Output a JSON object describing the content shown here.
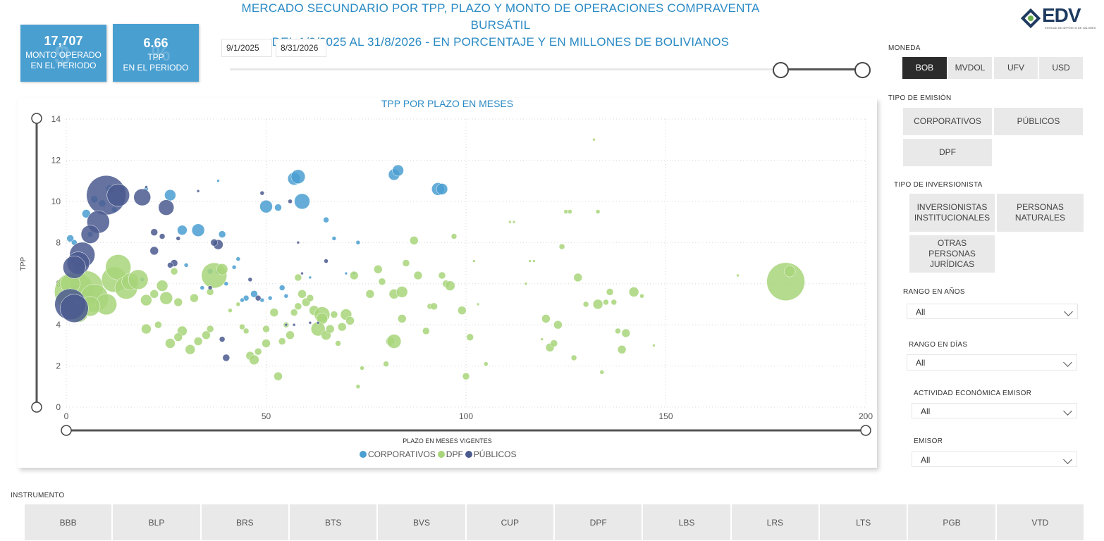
{
  "header": {
    "title_line1": "MERCADO SECUNDARIO POR TPP, PLAZO Y MONTO DE OPERACIONES COMPRAVENTA BURSÁTIL",
    "title_line2": "DEL 1/9/2025 AL 31/8/2026 - EN PORCENTAJE Y EN MILLONES DE BOLIVIANOS",
    "logo_text": "EDV",
    "logo_subtext": "ENTIDAD DE DEPÓSITO DE VALORES"
  },
  "kpis": [
    {
      "value": "17,707",
      "label1": "MONTO OPERADO",
      "label2": "EN EL PERIODO"
    },
    {
      "value": "6.66",
      "label1": "TPP",
      "label2": "EN EL PERIODO"
    }
  ],
  "date_range": {
    "start": "9/1/2025",
    "end": "8/31/2026"
  },
  "moneda": {
    "label": "MONEDA",
    "options": [
      "BOB",
      "MVDOL",
      "UFV",
      "USD"
    ],
    "selected": "BOB"
  },
  "tipo_emision": {
    "label": "TIPO DE EMISIÓN",
    "options": [
      "CORPORATIVOS",
      "PÚBLICOS",
      "DPF"
    ]
  },
  "tipo_inversionista": {
    "label": "TIPO DE INVERSIONISTA",
    "options": [
      [
        "INVERSIONISTAS",
        "INSTITUCIONALES"
      ],
      [
        "PERSONAS",
        "NATURALES"
      ],
      [
        "OTRAS",
        "PERSONAS",
        "JURÍDICAS"
      ]
    ]
  },
  "dropdowns": [
    {
      "label": "RANGO EN AÑOS",
      "value": "All"
    },
    {
      "label": "RANGO EN DÍAS",
      "value": "All"
    },
    {
      "label": "ACTIVIDAD ECONÓMICA EMISOR",
      "value": "All"
    },
    {
      "label": "EMISOR",
      "value": "All"
    }
  ],
  "instrumento": {
    "label": "INSTRUMENTO",
    "options": [
      "BBB",
      "BLP",
      "BRS",
      "BTS",
      "BVS",
      "CUP",
      "DPF",
      "LBS",
      "LRS",
      "LTS",
      "PGB",
      "VTD"
    ]
  },
  "colors": {
    "corporativos": "#4a9fd1",
    "dpf": "#a8d57a",
    "publicos": "#4b5b8f",
    "title_blue": "#2a8ac4"
  },
  "chart_data": {
    "type": "scatter",
    "title": "TPP POR PLAZO EN MESES",
    "xlabel": "PLAZO EN MESES VIGENTES",
    "ylabel": "TPP",
    "xlim": [
      0,
      200
    ],
    "ylim": [
      0,
      14
    ],
    "xticks": [
      0,
      50,
      100,
      150,
      200
    ],
    "yticks": [
      0,
      2,
      4,
      6,
      8,
      10,
      12,
      14
    ],
    "grid": true,
    "legend_position": "bottom",
    "series": [
      {
        "name": "CORPORATIVOS",
        "color": "#4a9fd1",
        "points": [
          [
            57,
            11.1,
            9
          ],
          [
            58,
            11.2,
            10
          ],
          [
            82,
            11.3,
            8
          ],
          [
            83,
            11.5,
            8
          ],
          [
            93,
            10.6,
            9
          ],
          [
            94,
            10.6,
            8
          ],
          [
            50,
            9.75,
            9
          ],
          [
            53,
            9.7,
            5
          ],
          [
            59,
            10.0,
            11
          ],
          [
            26,
            10.3,
            8
          ],
          [
            29,
            8.6,
            7
          ],
          [
            33,
            8.6,
            9
          ],
          [
            39,
            8.4,
            5
          ],
          [
            1,
            8.2,
            5
          ],
          [
            2,
            8.0,
            4
          ],
          [
            6,
            8.4,
            4
          ],
          [
            65,
            9.1,
            4
          ],
          [
            67,
            8.2,
            3
          ],
          [
            73,
            8.0,
            3
          ],
          [
            7,
            10.1,
            5
          ],
          [
            5,
            9.4,
            6
          ],
          [
            11,
            10.6,
            6
          ],
          [
            9,
            9.9,
            5
          ],
          [
            12,
            9.6,
            4
          ],
          [
            14,
            10.6,
            5
          ],
          [
            20,
            10.6,
            3
          ],
          [
            43,
            7.2,
            3
          ],
          [
            42,
            6.8,
            3
          ],
          [
            38,
            6.6,
            4
          ],
          [
            36,
            6.6,
            4
          ],
          [
            30,
            6.9,
            3
          ],
          [
            4,
            7.0,
            5
          ],
          [
            3,
            6.8,
            7
          ],
          [
            19,
            6.2,
            3
          ],
          [
            47,
            5.5,
            5
          ],
          [
            45,
            5.3,
            4
          ],
          [
            51,
            5.3,
            3
          ],
          [
            55,
            5.4,
            3
          ],
          [
            54,
            5.8,
            4
          ],
          [
            49,
            5.2,
            3
          ],
          [
            34,
            5.8,
            3
          ],
          [
            40,
            6.0,
            3
          ],
          [
            61,
            6.3,
            2
          ],
          [
            70,
            6.5,
            2
          ],
          [
            72,
            6.5,
            2
          ],
          [
            38,
            11.0,
            2
          ],
          [
            2,
            5.4,
            4
          ],
          [
            44,
            5.2,
            3
          ]
        ]
      },
      {
        "name": "DPF",
        "color": "#a8d57a",
        "points": [
          [
            180,
            6.1,
            27
          ],
          [
            181,
            6.6,
            8
          ],
          [
            2,
            5.6,
            28
          ],
          [
            5,
            5.8,
            24
          ],
          [
            7,
            5.3,
            20
          ],
          [
            10,
            5.0,
            15
          ],
          [
            12,
            6.2,
            18
          ],
          [
            13,
            6.8,
            18
          ],
          [
            15,
            5.8,
            16
          ],
          [
            16,
            6.1,
            12
          ],
          [
            18,
            6.2,
            14
          ],
          [
            3,
            4.6,
            14
          ],
          [
            6,
            4.9,
            14
          ],
          [
            1,
            6.0,
            14
          ],
          [
            37,
            6.4,
            18
          ],
          [
            39,
            6.7,
            8
          ],
          [
            20,
            5.2,
            8
          ],
          [
            22,
            5.5,
            6
          ],
          [
            24,
            5.9,
            8
          ],
          [
            25,
            5.3,
            9
          ],
          [
            28,
            5.1,
            6
          ],
          [
            32,
            5.3,
            6
          ],
          [
            36,
            5.6,
            5
          ],
          [
            27,
            6.6,
            5
          ],
          [
            29,
            3.7,
            7
          ],
          [
            28,
            3.4,
            6
          ],
          [
            26,
            3.1,
            7
          ],
          [
            31,
            2.8,
            7
          ],
          [
            33,
            3.2,
            6
          ],
          [
            35,
            3.5,
            6
          ],
          [
            36,
            3.8,
            5
          ],
          [
            20,
            3.8,
            7
          ],
          [
            23,
            4.0,
            5
          ],
          [
            44,
            3.9,
            4
          ],
          [
            46,
            2.5,
            6
          ],
          [
            47,
            2.3,
            7
          ],
          [
            48,
            2.7,
            5
          ],
          [
            50,
            3.1,
            6
          ],
          [
            50,
            3.8,
            5
          ],
          [
            52,
            4.6,
            6
          ],
          [
            53,
            1.5,
            6
          ],
          [
            54,
            3.2,
            5
          ],
          [
            56,
            3.5,
            6
          ],
          [
            57,
            4.6,
            5
          ],
          [
            58,
            4.9,
            5
          ],
          [
            59,
            5.5,
            6
          ],
          [
            60,
            5.1,
            6
          ],
          [
            62,
            4.7,
            7
          ],
          [
            64,
            4.5,
            11
          ],
          [
            64,
            4.3,
            8
          ],
          [
            63,
            3.8,
            10
          ],
          [
            65,
            3.5,
            7
          ],
          [
            66,
            3.8,
            6
          ],
          [
            67,
            4.5,
            5
          ],
          [
            68,
            3.1,
            4
          ],
          [
            69,
            3.9,
            6
          ],
          [
            70,
            4.5,
            8
          ],
          [
            71,
            4.2,
            6
          ],
          [
            72,
            6.4,
            6
          ],
          [
            73,
            1.0,
            3
          ],
          [
            74,
            1.9,
            3
          ],
          [
            76,
            5.5,
            6
          ],
          [
            78,
            6.7,
            6
          ],
          [
            79,
            6.1,
            5
          ],
          [
            80,
            2.1,
            4
          ],
          [
            81,
            3.2,
            6
          ],
          [
            82,
            3.2,
            10
          ],
          [
            82,
            5.5,
            7
          ],
          [
            84,
            4.3,
            6
          ],
          [
            84,
            5.6,
            8
          ],
          [
            85,
            7.0,
            5
          ],
          [
            87,
            8.1,
            6
          ],
          [
            88,
            6.4,
            6
          ],
          [
            90,
            3.7,
            5
          ],
          [
            91,
            4.9,
            4
          ],
          [
            92,
            4.9,
            5
          ],
          [
            94,
            6.4,
            5
          ],
          [
            95,
            6.0,
            5
          ],
          [
            96,
            5.9,
            7
          ],
          [
            97,
            8.3,
            4
          ],
          [
            99,
            4.7,
            6
          ],
          [
            100,
            1.5,
            5
          ],
          [
            101,
            3.4,
            5
          ],
          [
            102,
            7.1,
            2
          ],
          [
            103,
            5.0,
            2
          ],
          [
            105,
            2.1,
            3
          ],
          [
            111,
            9.0,
            2
          ],
          [
            112,
            9.0,
            2
          ],
          [
            115,
            6.0,
            2
          ],
          [
            116,
            7.1,
            2
          ],
          [
            117,
            7.1,
            2
          ],
          [
            119,
            3.3,
            2
          ],
          [
            120,
            4.3,
            6
          ],
          [
            121,
            2.9,
            6
          ],
          [
            122,
            3.1,
            5
          ],
          [
            123,
            4.0,
            6
          ],
          [
            124,
            7.8,
            4
          ],
          [
            125,
            9.5,
            3
          ],
          [
            126,
            9.5,
            3
          ],
          [
            127,
            2.4,
            4
          ],
          [
            128,
            6.3,
            6
          ],
          [
            130,
            5.0,
            4
          ],
          [
            132,
            13.0,
            2
          ],
          [
            133,
            9.5,
            3
          ],
          [
            133,
            5.0,
            7
          ],
          [
            134,
            1.7,
            3
          ],
          [
            135,
            5.1,
            4
          ],
          [
            136,
            5.6,
            5
          ],
          [
            137,
            5.1,
            4
          ],
          [
            138,
            3.7,
            4
          ],
          [
            139,
            2.8,
            6
          ],
          [
            140,
            3.6,
            6
          ],
          [
            142,
            5.6,
            7
          ],
          [
            144,
            5.4,
            3
          ],
          [
            147,
            3.0,
            2
          ],
          [
            168,
            6.4,
            2
          ],
          [
            41,
            4.7,
            3
          ],
          [
            45,
            3.7,
            4
          ],
          [
            55,
            4.0,
            4
          ],
          [
            43,
            5.0,
            3
          ],
          [
            58,
            6.3,
            5
          ],
          [
            61,
            5.3,
            5
          ]
        ]
      },
      {
        "name": "PÚBLICOS",
        "color": "#4b5b8f",
        "points": [
          [
            10,
            10.3,
            28
          ],
          [
            13,
            10.3,
            16
          ],
          [
            19,
            10.2,
            12
          ],
          [
            25,
            9.7,
            11
          ],
          [
            8,
            9.0,
            16
          ],
          [
            6,
            8.4,
            13
          ],
          [
            4,
            7.4,
            18
          ],
          [
            3,
            7.0,
            16
          ],
          [
            2,
            6.8,
            16
          ],
          [
            1,
            5.0,
            22
          ],
          [
            2,
            4.8,
            20
          ],
          [
            38,
            7.9,
            7
          ],
          [
            37,
            8.0,
            5
          ],
          [
            22,
            7.6,
            6
          ],
          [
            27,
            7.0,
            5
          ],
          [
            22,
            8.5,
            5
          ],
          [
            24,
            8.3,
            4
          ],
          [
            28,
            8.2,
            3
          ],
          [
            26,
            6.9,
            4
          ],
          [
            46,
            6.2,
            3
          ],
          [
            48,
            5.3,
            4
          ],
          [
            49,
            10.4,
            3
          ],
          [
            56,
            10.0,
            3
          ],
          [
            33,
            10.5,
            2
          ],
          [
            36,
            5.8,
            3
          ],
          [
            40,
            2.4,
            5
          ],
          [
            39,
            3.3,
            4
          ],
          [
            55,
            4.0,
            2
          ],
          [
            57,
            4.0,
            2
          ],
          [
            61,
            4.1,
            2
          ],
          [
            63,
            4.1,
            2
          ],
          [
            59,
            6.5,
            2
          ],
          [
            58,
            8.0,
            2
          ],
          [
            65,
            7.1,
            3
          ],
          [
            20,
            10.7,
            2
          ]
        ]
      }
    ]
  }
}
